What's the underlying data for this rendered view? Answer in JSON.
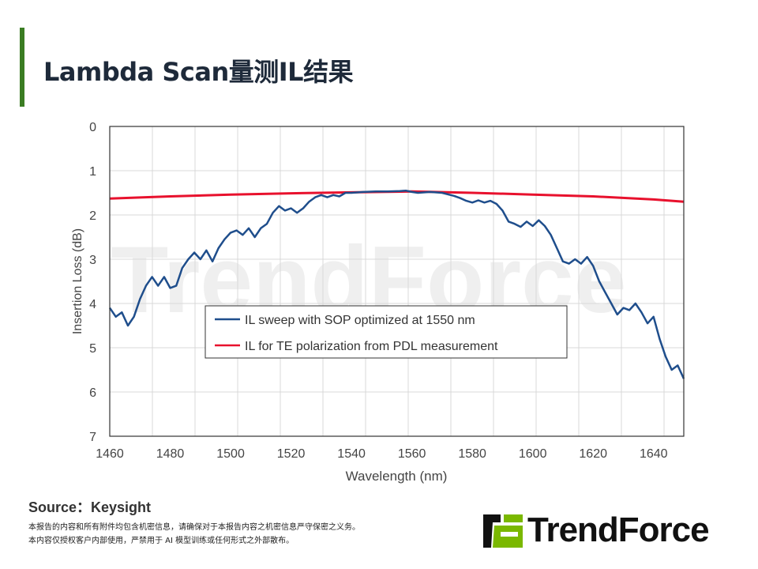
{
  "header": {
    "title": "Lambda Scan量测IL结果"
  },
  "footer": {
    "source": "Source：Keysight",
    "disclaimer_1": "本报告的内容和所有附件均包含机密信息，请确保对于本报告内容之机密信息严守保密之义务。",
    "disclaimer_2": "本内容仅授权客户内部使用，严禁用于 AI 模型训练或任何形式之外部散布。",
    "logo_text": "TrendForce",
    "watermark": "TrendForce"
  },
  "colors": {
    "accent": "#3b7d23",
    "blue_series": "#1f4e8c",
    "red_series": "#e8112d",
    "logo_green": "#7ab800"
  },
  "chart_data": {
    "type": "line",
    "xlabel": "Wavelength (nm)",
    "ylabel": "Insertion Loss (dB)",
    "xlim": [
      1460,
      1650
    ],
    "ylim": [
      0,
      7
    ],
    "y_inverted": true,
    "grid": true,
    "xticks": [
      1460,
      1480,
      1500,
      1520,
      1540,
      1560,
      1580,
      1600,
      1620,
      1640
    ],
    "yticks": [
      0,
      1,
      2,
      3,
      4,
      5,
      6,
      7
    ],
    "legend_position": "center-bottom",
    "series": [
      {
        "name": "IL sweep with SOP optimized at 1550 nm",
        "color": "#1f4e8c",
        "x": [
          1460,
          1462,
          1464,
          1466,
          1468,
          1470,
          1472,
          1474,
          1476,
          1478,
          1480,
          1482,
          1484,
          1486,
          1488,
          1490,
          1492,
          1494,
          1496,
          1498,
          1500,
          1502,
          1504,
          1506,
          1508,
          1510,
          1512,
          1514,
          1516,
          1518,
          1520,
          1522,
          1524,
          1526,
          1528,
          1530,
          1532,
          1534,
          1536,
          1538,
          1540,
          1544,
          1548,
          1552,
          1556,
          1558,
          1560,
          1562,
          1566,
          1570,
          1574,
          1576,
          1578,
          1580,
          1582,
          1584,
          1586,
          1588,
          1590,
          1592,
          1594,
          1596,
          1598,
          1600,
          1602,
          1604,
          1606,
          1608,
          1610,
          1612,
          1614,
          1616,
          1618,
          1620,
          1622,
          1624,
          1626,
          1628,
          1630,
          1632,
          1634,
          1636,
          1638,
          1640,
          1642,
          1644,
          1646,
          1648,
          1650
        ],
        "y": [
          4.1,
          4.3,
          4.2,
          4.5,
          4.3,
          3.9,
          3.6,
          3.4,
          3.6,
          3.4,
          3.65,
          3.6,
          3.2,
          3.0,
          2.85,
          3.0,
          2.8,
          3.05,
          2.75,
          2.55,
          2.4,
          2.35,
          2.45,
          2.3,
          2.5,
          2.3,
          2.2,
          1.95,
          1.8,
          1.9,
          1.85,
          1.95,
          1.85,
          1.7,
          1.6,
          1.55,
          1.6,
          1.55,
          1.58,
          1.5,
          1.5,
          1.48,
          1.47,
          1.47,
          1.46,
          1.45,
          1.48,
          1.5,
          1.48,
          1.5,
          1.57,
          1.62,
          1.68,
          1.72,
          1.67,
          1.72,
          1.68,
          1.75,
          1.9,
          2.15,
          2.2,
          2.27,
          2.15,
          2.25,
          2.12,
          2.25,
          2.45,
          2.75,
          3.05,
          3.1,
          3.0,
          3.1,
          2.95,
          3.15,
          3.5,
          3.75,
          4.0,
          4.25,
          4.1,
          4.15,
          4.0,
          4.2,
          4.45,
          4.3,
          4.8,
          5.2,
          5.5,
          5.4,
          5.7
        ]
      },
      {
        "name": "IL for TE polarization from PDL measurement",
        "color": "#e8112d",
        "x": [
          1460,
          1480,
          1500,
          1520,
          1540,
          1560,
          1580,
          1600,
          1620,
          1640,
          1650
        ],
        "y": [
          1.63,
          1.58,
          1.54,
          1.51,
          1.49,
          1.47,
          1.5,
          1.54,
          1.58,
          1.65,
          1.7
        ]
      }
    ]
  }
}
